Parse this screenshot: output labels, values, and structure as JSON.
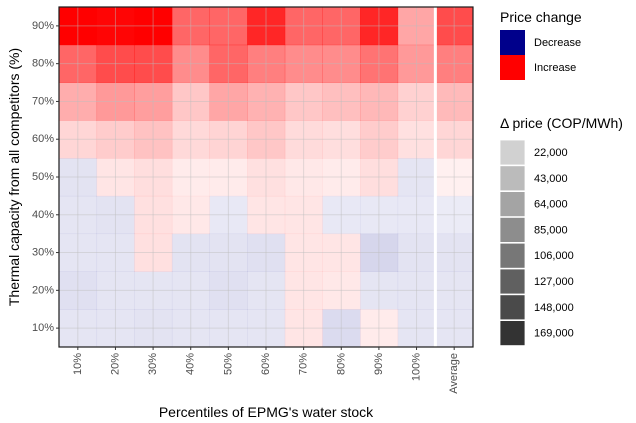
{
  "chart_data": {
    "type": "heatmap",
    "xlabel": "Percentiles of EPMG's water stock",
    "ylabel": "Thermal capacity from all competitors (%)",
    "x_categories": [
      "10%",
      "20%",
      "30%",
      "40%",
      "50%",
      "60%",
      "70%",
      "80%",
      "90%",
      "100%",
      "Average"
    ],
    "y_categories": [
      "10%",
      "20%",
      "30%",
      "40%",
      "50%",
      "60%",
      "70%",
      "80%",
      "90%"
    ],
    "fill_legend": {
      "title": "Price change",
      "entries": [
        {
          "label": "Decrease",
          "color": "#00008b"
        },
        {
          "label": "Increase",
          "color": "#ff0000"
        }
      ]
    },
    "alpha_legend": {
      "title": "Δ price (COP/MWh)",
      "breaks": [
        22000,
        43000,
        64000,
        85000,
        106000,
        127000,
        148000,
        169000
      ],
      "labels": [
        "22,000",
        "43,000",
        "64,000",
        "85,000",
        "106,000",
        "127,000",
        "148,000",
        "169,000"
      ]
    },
    "cells": [
      {
        "y": "90%",
        "values": [
          1.0,
          0.98,
          1.0,
          0.6,
          0.6,
          0.85,
          0.6,
          0.6,
          0.85,
          0.35,
          0.7
        ],
        "signs": [
          1,
          1,
          1,
          1,
          1,
          1,
          1,
          1,
          1,
          1,
          1
        ]
      },
      {
        "y": "80%",
        "values": [
          0.6,
          0.7,
          0.7,
          0.45,
          0.6,
          0.5,
          0.45,
          0.45,
          0.55,
          0.4,
          0.5
        ],
        "signs": [
          1,
          1,
          1,
          1,
          1,
          1,
          1,
          1,
          1,
          1,
          1
        ]
      },
      {
        "y": "70%",
        "values": [
          0.32,
          0.4,
          0.38,
          0.22,
          0.35,
          0.3,
          0.22,
          0.25,
          0.28,
          0.18,
          0.27
        ],
        "signs": [
          1,
          1,
          1,
          1,
          1,
          1,
          1,
          1,
          1,
          1,
          1
        ]
      },
      {
        "y": "60%",
        "values": [
          0.16,
          0.2,
          0.24,
          0.15,
          0.17,
          0.22,
          0.14,
          0.13,
          0.2,
          0.12,
          0.16
        ],
        "signs": [
          1,
          1,
          1,
          1,
          1,
          1,
          1,
          1,
          1,
          1,
          1
        ]
      },
      {
        "y": "50%",
        "values": [
          0.11,
          0.1,
          0.13,
          0.08,
          0.08,
          0.12,
          0.09,
          0.08,
          0.13,
          0.1,
          0.06
        ],
        "signs": [
          -1,
          1,
          1,
          1,
          1,
          1,
          1,
          1,
          1,
          -1,
          1
        ]
      },
      {
        "y": "40%",
        "values": [
          0.1,
          0.11,
          0.12,
          0.09,
          0.09,
          0.1,
          0.1,
          0.09,
          0.09,
          0.09,
          0.08
        ],
        "signs": [
          -1,
          -1,
          1,
          1,
          -1,
          1,
          1,
          -1,
          -1,
          -1,
          -1
        ]
      },
      {
        "y": "30%",
        "values": [
          0.1,
          0.1,
          0.12,
          0.11,
          0.11,
          0.12,
          0.1,
          0.1,
          0.16,
          0.11,
          0.11
        ],
        "signs": [
          -1,
          -1,
          1,
          -1,
          -1,
          -1,
          1,
          1,
          -1,
          -1,
          -1
        ]
      },
      {
        "y": "20%",
        "values": [
          0.12,
          0.1,
          0.1,
          0.1,
          0.12,
          0.1,
          0.1,
          0.09,
          0.1,
          0.1,
          0.1
        ],
        "signs": [
          -1,
          -1,
          -1,
          -1,
          -1,
          -1,
          1,
          1,
          -1,
          -1,
          -1
        ]
      },
      {
        "y": "10%",
        "values": [
          0.1,
          0.1,
          0.11,
          0.1,
          0.1,
          0.1,
          0.1,
          0.14,
          0.08,
          0.1,
          0.1
        ],
        "signs": [
          -1,
          -1,
          -1,
          -1,
          -1,
          -1,
          1,
          -1,
          1,
          -1,
          -1
        ]
      }
    ]
  }
}
